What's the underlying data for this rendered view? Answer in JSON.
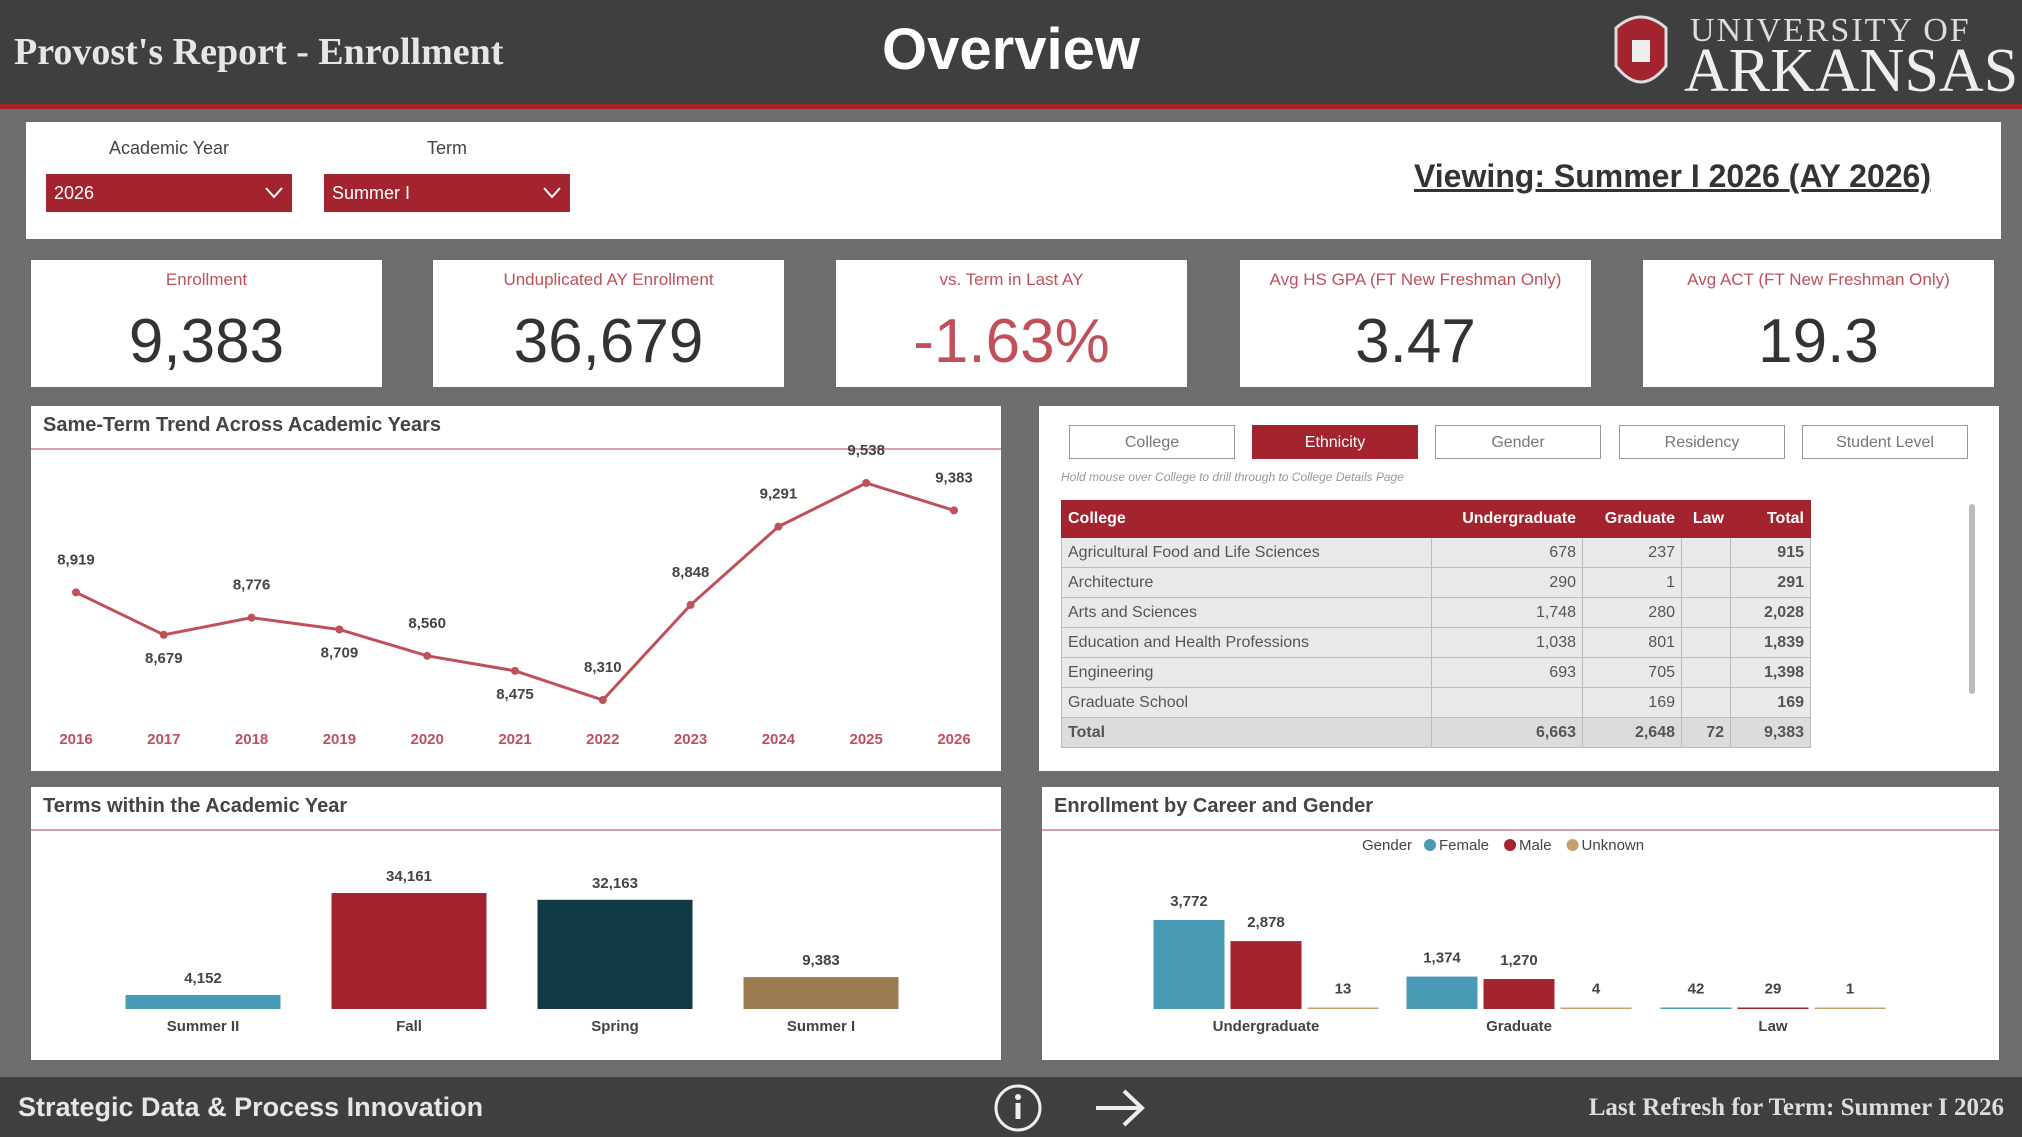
{
  "header": {
    "title": "Provost's Report - Enrollment",
    "page": "Overview",
    "logo_line1": "UNIVERSITY OF",
    "logo_line2": "ARKANSAS"
  },
  "filters": [
    {
      "label": "Academic Year",
      "value": "2026"
    },
    {
      "label": "Term",
      "value": "Summer I"
    }
  ],
  "viewing": "Viewing: Summer I 2026 (AY 2026)",
  "kpis": [
    {
      "label": "Enrollment",
      "value": "9,383"
    },
    {
      "label": "Unduplicated AY Enrollment",
      "value": "36,679"
    },
    {
      "label": "vs. Term in Last AY",
      "value": "-1.63%"
    },
    {
      "label": "Avg HS GPA (FT New Freshman Only)",
      "value": "3.47"
    },
    {
      "label": "Avg ACT (FT New Freshman Only)",
      "value": "19.3"
    }
  ],
  "tabs": {
    "items": [
      "College",
      "Ethnicity",
      "Gender",
      "Residency",
      "Student Level"
    ],
    "selected": 1
  },
  "hint": "Hold mouse over College to drill through to College Details Page",
  "table": {
    "columns": [
      "College",
      "Undergraduate",
      "Graduate",
      "Law",
      "Total"
    ],
    "rows": [
      [
        "Agricultural Food and Life Sciences",
        "678",
        "237",
        null,
        "915"
      ],
      [
        "Architecture",
        "290",
        "1",
        null,
        "291"
      ],
      [
        "Arts and Sciences",
        "1,748",
        "280",
        null,
        "2,028"
      ],
      [
        "Education and Health Professions",
        "1,038",
        "801",
        null,
        "1,839"
      ],
      [
        "Engineering",
        "693",
        "705",
        null,
        "1,398"
      ],
      [
        "Graduate School",
        null,
        "169",
        null,
        "169"
      ]
    ],
    "total": [
      "Total",
      "6,663",
      "2,648",
      "72",
      "9,383"
    ]
  },
  "chart_data": [
    {
      "type": "line",
      "title": "Same-Term Trend Across Academic Years",
      "color": "#c0505a",
      "categories": [
        "2016",
        "2017",
        "2018",
        "2019",
        "2020",
        "2021",
        "2022",
        "2023",
        "2024",
        "2025",
        "2026"
      ],
      "values": [
        8919,
        8679,
        8776,
        8709,
        8560,
        8475,
        8310,
        8848,
        9291,
        9538,
        9383
      ],
      "value_labels": [
        "8,919",
        "8,679",
        "8,776",
        "8,709",
        "8,560",
        "8,475",
        "8,310",
        "8,848",
        "9,291",
        "9,538",
        "9,383"
      ]
    },
    {
      "type": "bar",
      "title": "Terms within the Academic Year",
      "categories": [
        "Summer II",
        "Fall",
        "Spring",
        "Summer I"
      ],
      "values": [
        4152,
        34161,
        32163,
        9383
      ],
      "value_labels": [
        "4,152",
        "34,161",
        "32,163",
        "9,383"
      ],
      "colors": [
        "#4a9ab5",
        "#a3232f",
        "#123a44",
        "#9c7a4f"
      ]
    },
    {
      "type": "grouped_bar",
      "title": "Enrollment by Career and Gender",
      "legend_title": "Gender",
      "categories": [
        "Undergraduate",
        "Graduate",
        "Law"
      ],
      "series": [
        {
          "name": "Female",
          "color": "#4a9ab5",
          "values": [
            3772,
            1374,
            42
          ],
          "value_labels": [
            "3,772",
            "1,374",
            "42"
          ]
        },
        {
          "name": "Male",
          "color": "#a3232f",
          "values": [
            2878,
            1270,
            29
          ],
          "value_labels": [
            "2,878",
            "1,270",
            "29"
          ]
        },
        {
          "name": "Unknown",
          "color": "#c8a070",
          "values": [
            13,
            4,
            1
          ]
        }
      ]
    }
  ],
  "footer": {
    "left": "Strategic Data & Process Innovation",
    "right": "Last Refresh for Term: Summer I 2026"
  }
}
